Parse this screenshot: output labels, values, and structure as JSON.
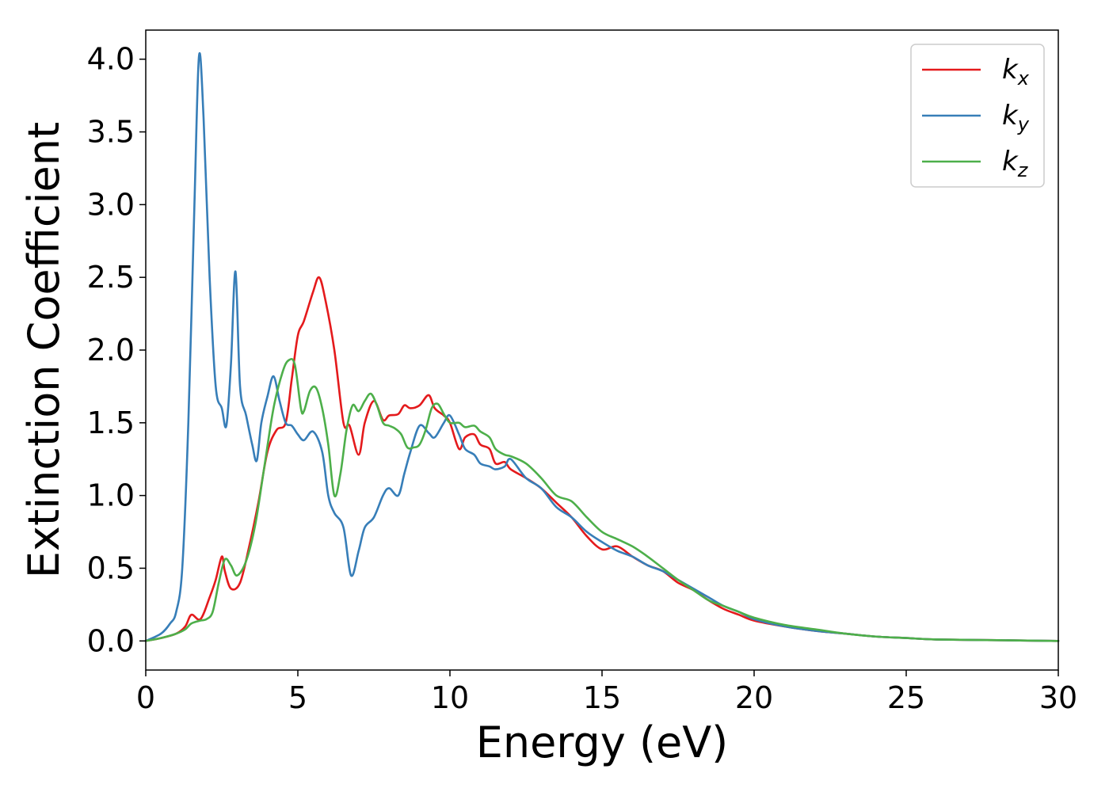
{
  "chart_data": {
    "type": "line",
    "title": "",
    "xlabel": "Energy (eV)",
    "ylabel": "Extinction Coefficient",
    "xlim": [
      0,
      30
    ],
    "ylim": [
      -0.2,
      4.2
    ],
    "xticks": [
      "0",
      "5",
      "10",
      "15",
      "20",
      "25",
      "30"
    ],
    "yticks": [
      "0.0",
      "0.5",
      "1.0",
      "1.5",
      "2.0",
      "2.5",
      "3.0",
      "3.5",
      "4.0"
    ],
    "grid": false,
    "legend_position": "top-right",
    "series": [
      {
        "name": "k",
        "subscript": "x",
        "color": "#e41a1c",
        "x": [
          0,
          0.5,
          1.0,
          1.3,
          1.5,
          1.8,
          2.1,
          2.3,
          2.5,
          2.6,
          2.8,
          3.1,
          3.4,
          3.7,
          4.0,
          4.3,
          4.6,
          4.8,
          5.0,
          5.2,
          5.5,
          5.7,
          5.9,
          6.2,
          6.5,
          6.7,
          7.0,
          7.2,
          7.5,
          7.8,
          8.0,
          8.3,
          8.5,
          8.7,
          9.0,
          9.3,
          9.5,
          9.8,
          10.0,
          10.3,
          10.5,
          10.8,
          11.0,
          11.3,
          11.5,
          11.8,
          12.0,
          12.5,
          13.0,
          13.5,
          14.0,
          14.5,
          15.0,
          15.5,
          16.0,
          16.5,
          17.0,
          17.5,
          18.0,
          18.5,
          19.0,
          19.5,
          20.0,
          21.0,
          22.0,
          23.0,
          24.0,
          25.0,
          26.0,
          28.0,
          30.0
        ],
        "values": [
          0.0,
          0.02,
          0.05,
          0.1,
          0.18,
          0.15,
          0.3,
          0.42,
          0.58,
          0.48,
          0.36,
          0.4,
          0.65,
          0.95,
          1.3,
          1.45,
          1.5,
          1.8,
          2.1,
          2.2,
          2.4,
          2.5,
          2.35,
          2.0,
          1.5,
          1.48,
          1.28,
          1.5,
          1.65,
          1.52,
          1.55,
          1.56,
          1.62,
          1.6,
          1.62,
          1.69,
          1.6,
          1.55,
          1.5,
          1.32,
          1.4,
          1.42,
          1.35,
          1.32,
          1.22,
          1.23,
          1.18,
          1.12,
          1.05,
          0.95,
          0.85,
          0.72,
          0.63,
          0.65,
          0.58,
          0.52,
          0.48,
          0.4,
          0.35,
          0.28,
          0.22,
          0.18,
          0.14,
          0.1,
          0.07,
          0.05,
          0.03,
          0.02,
          0.01,
          0.005,
          0.0
        ]
      },
      {
        "name": "k",
        "subscript": "y",
        "color": "#377eb8",
        "x": [
          0,
          0.5,
          0.8,
          1.0,
          1.2,
          1.4,
          1.6,
          1.75,
          1.9,
          2.1,
          2.3,
          2.5,
          2.65,
          2.8,
          2.95,
          3.1,
          3.3,
          3.5,
          3.65,
          3.8,
          4.0,
          4.2,
          4.4,
          4.6,
          4.8,
          5.0,
          5.2,
          5.5,
          5.8,
          6.0,
          6.2,
          6.5,
          6.75,
          7.0,
          7.2,
          7.5,
          7.8,
          8.0,
          8.3,
          8.5,
          8.7,
          9.0,
          9.3,
          9.5,
          9.8,
          10.0,
          10.3,
          10.5,
          10.8,
          11.0,
          11.3,
          11.5,
          11.8,
          12.0,
          12.5,
          13.0,
          13.5,
          14.0,
          14.5,
          15.0,
          15.5,
          16.0,
          16.5,
          17.0,
          17.5,
          18.0,
          18.5,
          19.0,
          19.5,
          20.0,
          21.0,
          22.0,
          23.0,
          24.0,
          25.0,
          26.0,
          28.0,
          30.0
        ],
        "values": [
          0.0,
          0.05,
          0.12,
          0.2,
          0.5,
          1.5,
          3.0,
          4.02,
          3.6,
          2.5,
          1.75,
          1.6,
          1.48,
          1.9,
          2.54,
          1.75,
          1.55,
          1.35,
          1.24,
          1.5,
          1.68,
          1.82,
          1.65,
          1.5,
          1.48,
          1.42,
          1.38,
          1.44,
          1.3,
          1.0,
          0.88,
          0.78,
          0.45,
          0.62,
          0.78,
          0.85,
          1.0,
          1.05,
          1.0,
          1.15,
          1.3,
          1.48,
          1.43,
          1.4,
          1.5,
          1.55,
          1.42,
          1.32,
          1.28,
          1.22,
          1.2,
          1.18,
          1.2,
          1.25,
          1.12,
          1.05,
          0.92,
          0.85,
          0.75,
          0.68,
          0.62,
          0.58,
          0.52,
          0.48,
          0.42,
          0.36,
          0.3,
          0.24,
          0.2,
          0.15,
          0.1,
          0.07,
          0.05,
          0.03,
          0.02,
          0.01,
          0.005,
          0.0
        ]
      },
      {
        "name": "k",
        "subscript": "z",
        "color": "#4daf4a",
        "x": [
          0,
          0.5,
          1.0,
          1.3,
          1.5,
          1.8,
          2.0,
          2.2,
          2.4,
          2.6,
          2.8,
          3.0,
          3.3,
          3.6,
          3.9,
          4.2,
          4.5,
          4.7,
          4.9,
          5.1,
          5.2,
          5.4,
          5.6,
          5.8,
          6.0,
          6.2,
          6.4,
          6.6,
          6.8,
          7.0,
          7.2,
          7.4,
          7.6,
          7.8,
          8.0,
          8.2,
          8.4,
          8.6,
          8.8,
          9.0,
          9.2,
          9.4,
          9.6,
          9.8,
          10.0,
          10.3,
          10.5,
          10.8,
          11.0,
          11.3,
          11.5,
          11.8,
          12.0,
          12.5,
          13.0,
          13.5,
          14.0,
          14.5,
          15.0,
          15.5,
          16.0,
          16.5,
          17.0,
          17.5,
          18.0,
          18.5,
          19.0,
          19.5,
          20.0,
          21.0,
          22.0,
          23.0,
          24.0,
          25.0,
          26.0,
          28.0,
          30.0
        ],
        "values": [
          0.0,
          0.02,
          0.05,
          0.08,
          0.12,
          0.14,
          0.15,
          0.2,
          0.4,
          0.56,
          0.52,
          0.45,
          0.55,
          0.8,
          1.2,
          1.6,
          1.85,
          1.93,
          1.9,
          1.6,
          1.58,
          1.72,
          1.74,
          1.6,
          1.35,
          1.0,
          1.15,
          1.45,
          1.62,
          1.58,
          1.65,
          1.7,
          1.62,
          1.5,
          1.48,
          1.46,
          1.42,
          1.33,
          1.33,
          1.35,
          1.45,
          1.6,
          1.63,
          1.56,
          1.5,
          1.5,
          1.47,
          1.48,
          1.44,
          1.4,
          1.32,
          1.28,
          1.27,
          1.22,
          1.12,
          1.0,
          0.96,
          0.85,
          0.75,
          0.7,
          0.65,
          0.58,
          0.5,
          0.42,
          0.35,
          0.28,
          0.24,
          0.2,
          0.16,
          0.11,
          0.08,
          0.05,
          0.03,
          0.02,
          0.01,
          0.005,
          0.0
        ]
      }
    ]
  }
}
